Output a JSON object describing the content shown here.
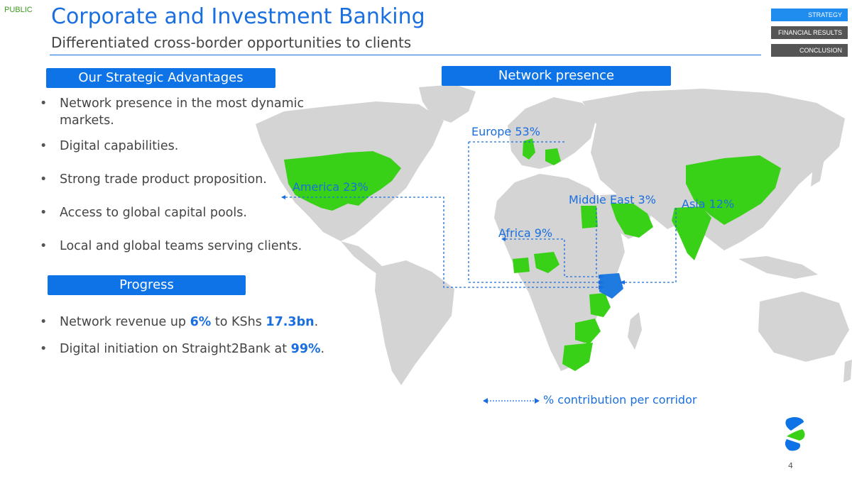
{
  "classification": "PUBLIC",
  "header": {
    "title": "Corporate and Investment Banking",
    "subtitle": "Differentiated cross-border opportunities to clients"
  },
  "nav": {
    "strategy": "STRATEGY",
    "financial_results": "FINANCIAL RESULTS",
    "conclusion": "CONCLUSION"
  },
  "advantages": {
    "heading": "Our Strategic Advantages",
    "items": [
      "Network presence in the most dynamic markets.",
      "Digital capabilities.",
      "Strong trade product proposition.",
      "Access to global capital pools.",
      "Local and global teams serving clients."
    ]
  },
  "progress": {
    "heading": "Progress",
    "item1": {
      "before": "Network revenue up ",
      "pct": "6%",
      "mid": " to KShs ",
      "amount": "17.3bn",
      "after": "."
    },
    "item2": {
      "before": "Digital initiation on Straight2Bank at ",
      "pct": "99%",
      "after": "."
    }
  },
  "map": {
    "heading": "Network presence",
    "labels": {
      "europe": "Europe 53%",
      "america": "America 23%",
      "middle_east": "Middle East 3%",
      "asia": "Asia 12%",
      "africa": "Africa 9%"
    },
    "colors": {
      "land": "#d4d4d4",
      "network": "#39d117",
      "hub": "#1f7be0",
      "accent": "#1a6fe0"
    }
  },
  "legend": {
    "text": "% contribution per corridor"
  },
  "page_number": "4"
}
